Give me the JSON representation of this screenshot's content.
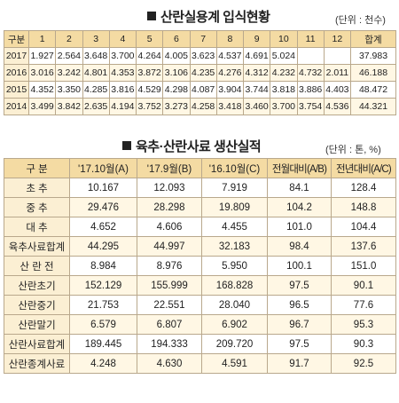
{
  "section1": {
    "title": "산란실용계 입식현황",
    "unit": "(단위 : 천수)",
    "headers": [
      "구분",
      "1",
      "2",
      "3",
      "4",
      "5",
      "6",
      "7",
      "8",
      "9",
      "10",
      "11",
      "12",
      "합계"
    ],
    "rows": [
      [
        "2017",
        "1.927",
        "2.564",
        "3.648",
        "3.700",
        "4.264",
        "4.005",
        "3.623",
        "4.537",
        "4.691",
        "5.024",
        "",
        "",
        "37.983"
      ],
      [
        "2016",
        "3.016",
        "3.242",
        "4.801",
        "4.353",
        "3.872",
        "3.106",
        "4.235",
        "4.276",
        "4.312",
        "4.232",
        "4.732",
        "2.011",
        "46.188"
      ],
      [
        "2015",
        "4.352",
        "3.350",
        "4.285",
        "3.816",
        "4.529",
        "4.298",
        "4.087",
        "3.904",
        "3.744",
        "3.818",
        "3.886",
        "4.403",
        "48.472"
      ],
      [
        "2014",
        "3.499",
        "3.842",
        "2.635",
        "4.194",
        "3.752",
        "3.273",
        "4.258",
        "3.418",
        "3.460",
        "3.700",
        "3.754",
        "4.536",
        "44.321"
      ]
    ]
  },
  "section2": {
    "title": "육추·산란사료 생산실적",
    "unit": "(단위 : 톤, %)",
    "headers": [
      "구 분",
      "'17.10월(A)",
      "'17.9월(B)",
      "'16.10월(C)",
      "전월대비(A/B)",
      "전년대비(A/C)"
    ],
    "rows": [
      [
        "초 추",
        "10.167",
        "12.093",
        "7.919",
        "84.1",
        "128.4"
      ],
      [
        "중 추",
        "29.476",
        "28.298",
        "19.809",
        "104.2",
        "148.8"
      ],
      [
        "대 추",
        "4.652",
        "4.606",
        "4.455",
        "101.0",
        "104.4"
      ],
      [
        "육추사료합계",
        "44.295",
        "44.997",
        "32.183",
        "98.4",
        "137.6"
      ],
      [
        "산 란 전",
        "8.984",
        "8.976",
        "5.950",
        "100.1",
        "151.0"
      ],
      [
        "산란초기",
        "152.129",
        "155.999",
        "168.828",
        "97.5",
        "90.1"
      ],
      [
        "산란중기",
        "21.753",
        "22.551",
        "28.040",
        "96.5",
        "77.6"
      ],
      [
        "산란말기",
        "6.579",
        "6.807",
        "6.902",
        "96.7",
        "95.3"
      ],
      [
        "산란사료합계",
        "189.445",
        "194.333",
        "209.720",
        "97.5",
        "90.3"
      ],
      [
        "산란종계사료",
        "4.248",
        "4.630",
        "4.591",
        "91.7",
        "92.5"
      ]
    ]
  }
}
